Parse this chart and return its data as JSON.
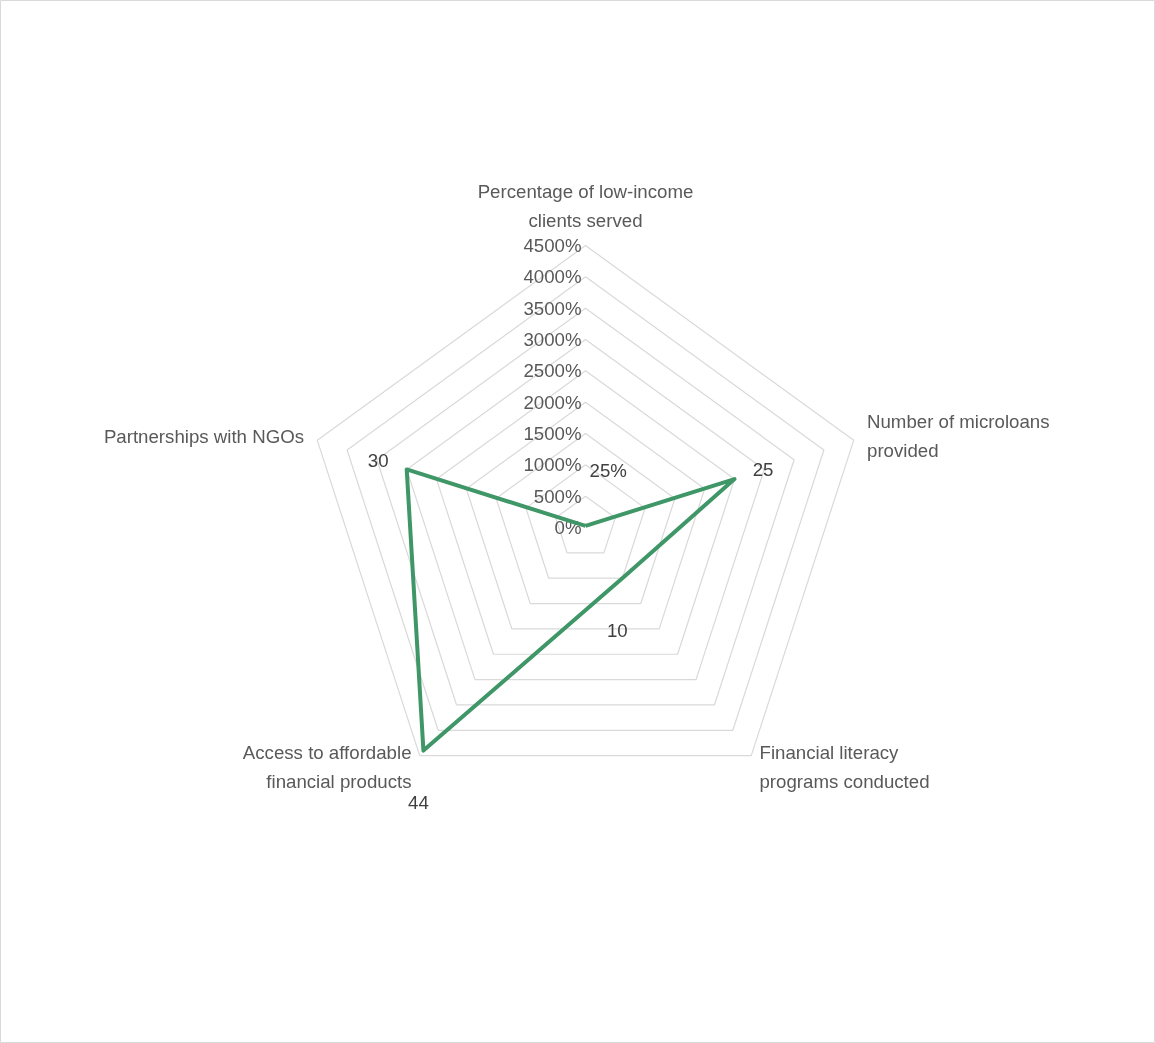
{
  "chart_data": {
    "type": "radar",
    "categories": [
      "Percentage of low-income clients served",
      "Number of microloans provided",
      "Financial literacy programs conducted",
      "Access to affordable financial products",
      "Partnerships with NGOs"
    ],
    "series": [
      {
        "color": "#3f9667",
        "values": [
          0.25,
          25,
          10,
          44,
          30
        ],
        "value_labels": [
          "25%",
          "25",
          "10",
          "44",
          "30"
        ]
      }
    ],
    "ylim": [
      0,
      45
    ],
    "yticks": [
      {
        "value": 0,
        "label": "0%"
      },
      {
        "value": 5,
        "label": "500%"
      },
      {
        "value": 10,
        "label": "1000%"
      },
      {
        "value": 15,
        "label": "1500%"
      },
      {
        "value": 20,
        "label": "2000%"
      },
      {
        "value": 25,
        "label": "2500%"
      },
      {
        "value": 30,
        "label": "3000%"
      },
      {
        "value": 35,
        "label": "3500%"
      },
      {
        "value": 40,
        "label": "4000%"
      },
      {
        "value": 45,
        "label": "4500%"
      }
    ],
    "grid": true
  }
}
